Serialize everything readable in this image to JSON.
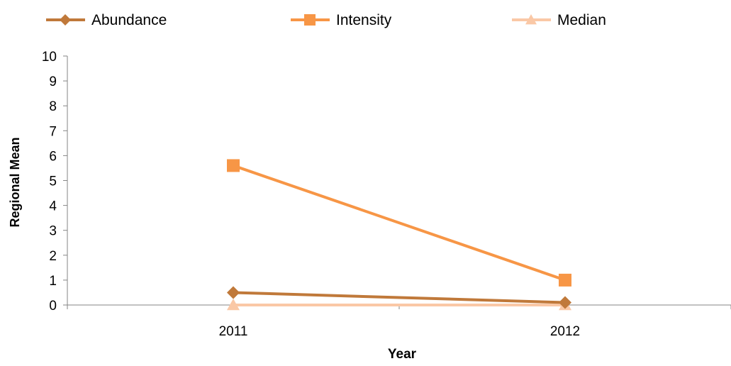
{
  "chart_data": {
    "type": "line",
    "title": "",
    "xlabel": "Year",
    "ylabel": "Regional Mean",
    "categories": [
      "2011",
      "2012"
    ],
    "ylim": [
      0,
      10
    ],
    "yticks": [
      "0",
      "1",
      "2",
      "3",
      "4",
      "5",
      "6",
      "7",
      "8",
      "9",
      "10"
    ],
    "grid": false,
    "legend_position": "top",
    "series": [
      {
        "name": "Abundance",
        "values": [
          0.5,
          0.1
        ],
        "color": "#C0793A",
        "marker": "diamond"
      },
      {
        "name": "Intensity",
        "values": [
          5.6,
          1.0
        ],
        "color": "#F79646",
        "marker": "square"
      },
      {
        "name": "Median",
        "values": [
          0.0,
          0.0
        ],
        "color": "#FAC8A6",
        "marker": "triangle"
      }
    ]
  }
}
